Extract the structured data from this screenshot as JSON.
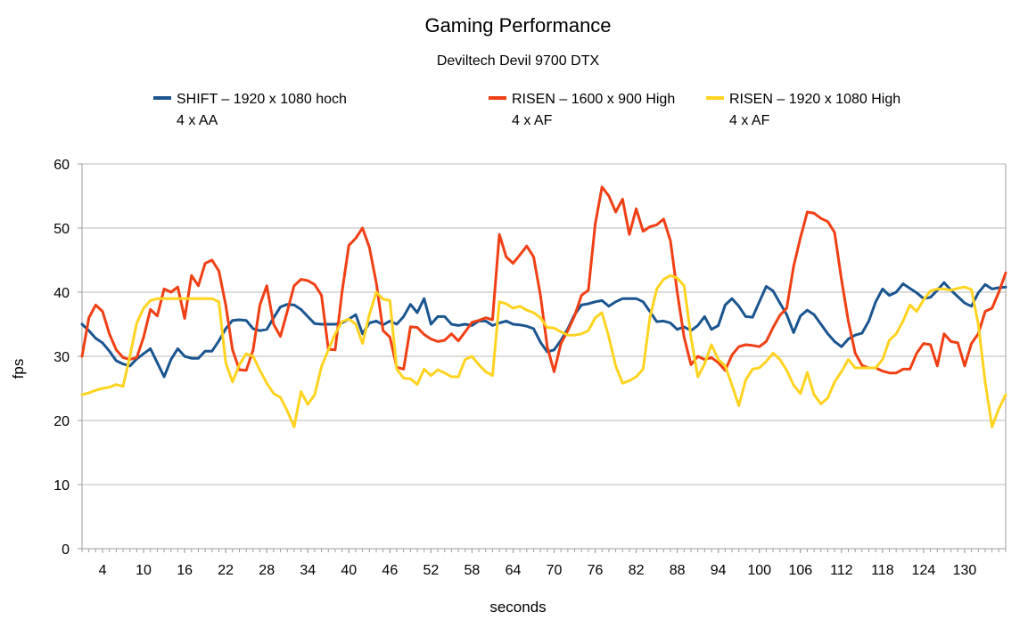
{
  "header": {
    "title": "Gaming Performance",
    "subtitle": "Deviltech Devil 9700 DTX"
  },
  "legend": {
    "items": [
      {
        "line1": "SHIFT – 1920 x 1080 hoch",
        "line2": "4 x AA"
      },
      {
        "line1": "RISEN – 1600 x 900 High",
        "line2": "4 x AF"
      },
      {
        "line1": "RISEN – 1920 x 1080 High",
        "line2": "4 x AF"
      }
    ]
  },
  "chart_data": {
    "type": "line",
    "title": "Gaming Performance",
    "subtitle": "Deviltech Devil 9700 DTX",
    "xlabel": "seconds",
    "ylabel": "fps",
    "xlim": [
      1,
      136
    ],
    "ylim": [
      0,
      60
    ],
    "x_step": 1,
    "x_start": 1,
    "x_ticks": [
      4,
      10,
      16,
      22,
      28,
      34,
      40,
      46,
      52,
      58,
      64,
      70,
      76,
      82,
      88,
      94,
      100,
      106,
      112,
      118,
      124,
      130
    ],
    "y_ticks": [
      0,
      10,
      20,
      30,
      40,
      50,
      60
    ],
    "grid": true,
    "legend_position": "top",
    "axis_color": "#9e9e9e",
    "grid_color": "#b8b8b8",
    "series": [
      {
        "name": "SHIFT – 1920 x 1080 hoch 4 x AA",
        "color": "#1a5590",
        "values": [
          35,
          34,
          32.8,
          32.1,
          30.8,
          29.3,
          28.8,
          28.5,
          29.6,
          30.4,
          31.2,
          29,
          26.8,
          29.5,
          31.2,
          30,
          29.7,
          29.7,
          30.8,
          30.8,
          32.4,
          34.3,
          35.6,
          35.7,
          35.6,
          34.3,
          34,
          34.2,
          36,
          37.7,
          38.1,
          38,
          37.3,
          36.2,
          35.1,
          35,
          35,
          35,
          35.2,
          35.8,
          36.5,
          33.5,
          35.2,
          35.5,
          34.9,
          35.5,
          35,
          36.2,
          38.1,
          36.8,
          39,
          35,
          36.2,
          36.2,
          35,
          34.8,
          35,
          34.8,
          35.5,
          35.5,
          34.8,
          35.2,
          35.5,
          35,
          34.9,
          34.7,
          34.3,
          32.2,
          30.7,
          31,
          32.5,
          34.3,
          36.5,
          38,
          38.2,
          38.5,
          38.7,
          37.8,
          38.5,
          39,
          39,
          39,
          38.5,
          37,
          35.4,
          35.5,
          35.2,
          34.2,
          34.6,
          34,
          34.8,
          36.2,
          34.2,
          34.8,
          38,
          39,
          37.8,
          36.2,
          36.1,
          38.5,
          40.9,
          40.2,
          38.3,
          36.5,
          33.7,
          36.3,
          37.2,
          36.5,
          35,
          33.5,
          32.3,
          31.5,
          32.7,
          33.3,
          33.6,
          35.5,
          38.5,
          40.5,
          39.5,
          40,
          41.3,
          40.6,
          39.9,
          39,
          39.2,
          40.3,
          41.5,
          40.3,
          39.3,
          38.3,
          37.8,
          39.9,
          41.2,
          40.5,
          40.7,
          40.8
        ]
      },
      {
        "name": "RISEN – 1600 x 900 High 4 x AF",
        "color": "#f03f14",
        "values": [
          30,
          36,
          38,
          37,
          33.5,
          31,
          29.8,
          29.5,
          29.8,
          33,
          37.3,
          36.3,
          40.5,
          40,
          40.8,
          35.9,
          42.6,
          41,
          44.5,
          45,
          43.3,
          38,
          31,
          27.9,
          27.8,
          31,
          38,
          41,
          35,
          33.1,
          37,
          41,
          42,
          41.8,
          41.2,
          39.5,
          31.1,
          31,
          40,
          47.3,
          48.4,
          50,
          47,
          41.5,
          34,
          33,
          28.3,
          28,
          34.6,
          34.5,
          33.4,
          32.7,
          32.3,
          32.5,
          33.5,
          32.4,
          33.8,
          35.3,
          35.6,
          36,
          35.7,
          49,
          45.5,
          44.5,
          45.8,
          47.2,
          45.5,
          39.5,
          31.5,
          27.6,
          32,
          34,
          36.3,
          39.5,
          40.3,
          50.6,
          56.4,
          55,
          52.5,
          54.5,
          49,
          53,
          49.5,
          50.2,
          50.5,
          51.4,
          48,
          40,
          33,
          28.7,
          30,
          29.5,
          29.8,
          29,
          27.8,
          30.2,
          31.5,
          31.8,
          31.7,
          31.5,
          32.3,
          34.5,
          36.4,
          37.5,
          44,
          48.5,
          52.5,
          52.3,
          51.5,
          51,
          49.3,
          42,
          35.5,
          30.5,
          28.6,
          28.2,
          28.2,
          27.7,
          27.4,
          27.4,
          28,
          28,
          30.5,
          32,
          31.8,
          28.5,
          33.5,
          32.3,
          32.1,
          28.5,
          32,
          33.5,
          37,
          37.5,
          40,
          43
        ]
      },
      {
        "name": "RISEN – 1920 x 1080 High 4 x AF",
        "color": "#ffd320",
        "values": [
          24,
          24.3,
          24.7,
          25,
          25.2,
          25.6,
          25.3,
          30,
          35.2,
          37.5,
          38.7,
          39,
          39,
          39,
          39,
          39,
          39,
          39,
          39,
          39,
          38.5,
          29,
          26,
          28.7,
          30.4,
          30,
          27.8,
          25.8,
          24.2,
          23.6,
          21.5,
          19,
          24.5,
          22.5,
          24,
          28.4,
          31,
          33.5,
          35.4,
          35.8,
          35,
          32,
          36.5,
          40,
          38.9,
          38.7,
          28,
          26.6,
          26.5,
          25.6,
          28,
          27,
          27.9,
          27.4,
          26.8,
          26.8,
          29.5,
          30,
          28.7,
          27.6,
          27,
          38.5,
          38.2,
          37.5,
          37.8,
          37.2,
          36.8,
          36,
          34.5,
          34.4,
          33.8,
          33.3,
          33.3,
          33.5,
          34,
          36,
          36.8,
          33,
          28.5,
          25.8,
          26.2,
          26.8,
          28,
          36,
          40.5,
          42,
          42.6,
          42.2,
          41,
          33,
          26.8,
          28.8,
          31.8,
          29.5,
          28.5,
          25.5,
          22.3,
          26.3,
          28,
          28.2,
          29.2,
          30.5,
          29.5,
          27.8,
          25.5,
          24.2,
          27.5,
          24,
          22.6,
          23.5,
          26,
          27.6,
          29.5,
          28.2,
          28.2,
          28.2,
          28.2,
          29.5,
          32.5,
          33.5,
          35.5,
          38,
          37,
          38.8,
          40.2,
          40.5,
          40.5,
          40.3,
          40.6,
          40.8,
          40.4,
          35,
          26,
          19,
          21.8,
          24
        ]
      }
    ]
  }
}
